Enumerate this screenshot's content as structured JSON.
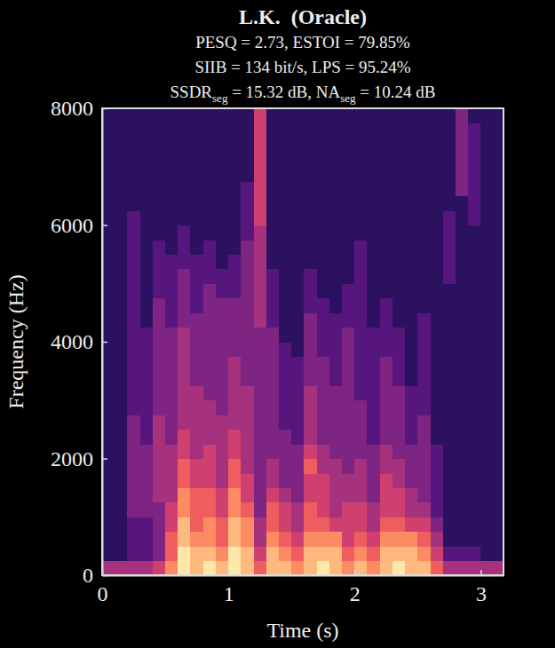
{
  "chart_data": {
    "type": "heatmap",
    "title": "L.K.  (Oracle)",
    "subtitle": [
      [
        "PESQ = 2.73, ESTOI = 79.85%"
      ],
      [
        "SIIB = 134 bit/s, LPS = 95.24%"
      ],
      [
        "SSDR",
        {
          "sub": "seg"
        },
        " = 15.32 dB, NA",
        {
          "sub": "seg"
        },
        " = 10.24 dB"
      ]
    ],
    "x_label": "Time (s)",
    "y_label": "Frequency (Hz)",
    "xlim": [
      0,
      3.18
    ],
    "ylim": [
      0,
      8000
    ],
    "xticks": [
      0,
      1,
      2,
      3
    ],
    "yticks": [
      0,
      2000,
      4000,
      6000,
      8000
    ],
    "x": [
      0,
      0.1,
      0.2,
      0.3,
      0.4,
      0.5,
      0.6,
      0.7,
      0.8,
      0.9,
      1.0,
      1.1,
      1.2,
      1.3,
      1.4,
      1.5,
      1.6,
      1.7,
      1.8,
      1.9,
      2.0,
      2.1,
      2.2,
      2.3,
      2.4,
      2.5,
      2.6,
      2.7,
      2.8,
      2.9,
      3.0,
      3.1
    ],
    "y": [
      0,
      250,
      500,
      750,
      1000,
      1250,
      1500,
      1750,
      2000,
      2250,
      2500,
      2750,
      3000,
      3250,
      3500,
      3750,
      4000,
      4250,
      4500,
      4750,
      5000,
      5250,
      5500,
      5750,
      6000,
      6250,
      6500,
      6750,
      7000,
      7250,
      7500,
      7750
    ],
    "cells": [
      [
        4,
        1,
        1,
        1,
        1,
        1,
        1,
        1,
        1,
        1,
        1,
        1,
        1,
        1,
        1,
        1,
        1,
        1,
        1,
        1,
        1,
        1,
        1,
        1,
        1,
        1,
        1,
        1,
        1,
        1,
        1,
        1
      ],
      [
        4,
        1,
        1,
        1,
        1,
        1,
        1,
        1,
        1,
        1,
        1,
        1,
        1,
        1,
        1,
        1,
        1,
        1,
        1,
        1,
        1,
        1,
        1,
        1,
        1,
        1,
        1,
        1,
        1,
        1,
        1,
        1
      ],
      [
        4,
        2,
        2,
        2,
        3,
        3,
        3,
        3,
        3,
        3,
        3,
        2,
        2,
        2,
        2,
        2,
        2,
        2,
        2,
        2,
        2,
        2,
        2,
        2,
        2,
        1,
        1,
        1,
        1,
        1,
        1,
        1
      ],
      [
        4,
        2,
        2,
        2,
        3,
        3,
        3,
        3,
        3,
        2,
        2,
        2,
        2,
        2,
        2,
        2,
        2,
        1,
        1,
        1,
        1,
        1,
        1,
        1,
        1,
        1,
        1,
        1,
        1,
        1,
        1,
        1
      ],
      [
        5,
        3,
        3,
        3,
        3,
        4,
        4,
        4,
        4,
        4,
        4,
        3,
        3,
        3,
        3,
        3,
        3,
        3,
        3,
        2,
        2,
        2,
        2,
        1,
        1,
        1,
        1,
        1,
        1,
        1,
        1,
        1
      ],
      [
        7,
        6,
        6,
        5,
        5,
        4,
        4,
        4,
        4,
        3,
        3,
        3,
        3,
        3,
        3,
        3,
        3,
        2,
        2,
        2,
        2,
        2,
        1,
        1,
        1,
        1,
        1,
        1,
        1,
        1,
        1,
        1
      ],
      [
        9,
        9,
        8,
        8,
        7,
        7,
        6,
        6,
        5,
        5,
        4,
        4,
        4,
        4,
        4,
        4,
        4,
        3,
        3,
        3,
        3,
        2,
        2,
        2,
        1,
        1,
        1,
        1,
        1,
        1,
        1,
        1
      ],
      [
        8,
        8,
        7,
        6,
        6,
        6,
        5,
        5,
        4,
        4,
        4,
        4,
        4,
        3,
        3,
        3,
        3,
        3,
        2,
        2,
        2,
        2,
        1,
        1,
        1,
        1,
        1,
        1,
        1,
        1,
        1,
        1
      ],
      [
        9,
        8,
        7,
        7,
        6,
        6,
        5,
        5,
        5,
        4,
        4,
        4,
        3,
        3,
        3,
        3,
        3,
        3,
        3,
        3,
        2,
        2,
        2,
        1,
        1,
        1,
        1,
        1,
        1,
        1,
        1,
        1
      ],
      [
        8,
        7,
        6,
        6,
        5,
        5,
        4,
        4,
        4,
        4,
        4,
        3,
        3,
        3,
        3,
        3,
        3,
        3,
        3,
        2,
        2,
        1,
        1,
        1,
        1,
        1,
        1,
        1,
        1,
        1,
        1,
        1
      ],
      [
        9,
        9,
        8,
        8,
        7,
        7,
        6,
        6,
        5,
        5,
        4,
        4,
        4,
        4,
        4,
        3,
        3,
        3,
        3,
        2,
        2,
        2,
        1,
        1,
        1,
        1,
        1,
        1,
        1,
        1,
        1,
        1
      ],
      [
        8,
        8,
        7,
        7,
        6,
        5,
        5,
        4,
        4,
        4,
        4,
        4,
        4,
        3,
        3,
        3,
        3,
        3,
        3,
        3,
        3,
        3,
        3,
        2,
        2,
        2,
        2,
        1,
        1,
        1,
        1,
        1
      ],
      [
        6,
        5,
        4,
        4,
        3,
        3,
        3,
        3,
        3,
        3,
        3,
        3,
        3,
        3,
        3,
        3,
        3,
        4,
        4,
        4,
        4,
        4,
        4,
        4,
        5,
        5,
        5,
        5,
        5,
        5,
        5,
        5
      ],
      [
        8,
        8,
        7,
        6,
        6,
        5,
        4,
        4,
        3,
        3,
        3,
        3,
        3,
        3,
        3,
        3,
        3,
        2,
        2,
        2,
        2,
        1,
        1,
        1,
        1,
        1,
        1,
        1,
        1,
        1,
        1,
        1
      ],
      [
        8,
        7,
        6,
        5,
        5,
        4,
        3,
        3,
        3,
        3,
        2,
        2,
        2,
        2,
        2,
        2,
        1,
        1,
        1,
        1,
        1,
        1,
        1,
        1,
        1,
        1,
        1,
        1,
        1,
        1,
        1,
        1
      ],
      [
        7,
        6,
        5,
        4,
        4,
        3,
        3,
        3,
        3,
        2,
        2,
        2,
        2,
        2,
        2,
        1,
        1,
        1,
        1,
        1,
        1,
        1,
        1,
        1,
        1,
        1,
        1,
        1,
        1,
        1,
        1,
        1
      ],
      [
        8,
        8,
        7,
        6,
        6,
        5,
        5,
        6,
        5,
        4,
        4,
        4,
        4,
        3,
        3,
        3,
        3,
        3,
        2,
        2,
        2,
        1,
        1,
        1,
        1,
        1,
        1,
        1,
        1,
        1,
        1,
        1
      ],
      [
        9,
        8,
        7,
        6,
        5,
        5,
        5,
        4,
        4,
        3,
        3,
        3,
        3,
        3,
        3,
        2,
        2,
        2,
        2,
        1,
        1,
        1,
        1,
        1,
        1,
        1,
        1,
        1,
        1,
        1,
        1,
        1
      ],
      [
        8,
        8,
        7,
        5,
        4,
        4,
        4,
        4,
        3,
        3,
        3,
        3,
        3,
        2,
        2,
        2,
        2,
        2,
        1,
        1,
        1,
        1,
        1,
        1,
        1,
        1,
        1,
        1,
        1,
        1,
        1,
        1
      ],
      [
        7,
        6,
        5,
        5,
        5,
        4,
        4,
        3,
        3,
        3,
        3,
        3,
        3,
        3,
        3,
        3,
        3,
        2,
        2,
        2,
        1,
        1,
        1,
        1,
        1,
        1,
        1,
        1,
        1,
        1,
        1,
        1
      ],
      [
        8,
        7,
        6,
        5,
        5,
        4,
        4,
        4,
        3,
        3,
        3,
        3,
        2,
        2,
        2,
        2,
        2,
        2,
        2,
        2,
        2,
        2,
        2,
        1,
        1,
        1,
        1,
        1,
        1,
        1,
        1,
        1
      ],
      [
        7,
        6,
        5,
        4,
        4,
        3,
        3,
        3,
        3,
        2,
        2,
        2,
        2,
        2,
        2,
        2,
        2,
        1,
        1,
        1,
        1,
        1,
        1,
        1,
        1,
        1,
        1,
        1,
        1,
        1,
        1,
        1
      ],
      [
        8,
        8,
        7,
        6,
        5,
        5,
        5,
        4,
        4,
        3,
        3,
        3,
        3,
        3,
        3,
        2,
        2,
        2,
        2,
        1,
        1,
        1,
        1,
        1,
        1,
        1,
        1,
        1,
        1,
        1,
        1,
        1
      ],
      [
        9,
        8,
        7,
        6,
        5,
        5,
        4,
        4,
        3,
        3,
        3,
        3,
        3,
        2,
        2,
        2,
        2,
        1,
        1,
        1,
        1,
        1,
        1,
        1,
        1,
        1,
        1,
        1,
        1,
        1,
        1,
        1
      ],
      [
        8,
        8,
        7,
        5,
        4,
        4,
        3,
        3,
        3,
        2,
        2,
        2,
        2,
        1,
        1,
        1,
        1,
        1,
        1,
        1,
        1,
        1,
        1,
        1,
        1,
        1,
        1,
        1,
        1,
        1,
        1,
        1
      ],
      [
        8,
        7,
        6,
        5,
        4,
        3,
        3,
        3,
        3,
        3,
        3,
        2,
        2,
        2,
        2,
        2,
        2,
        2,
        1,
        1,
        1,
        1,
        1,
        1,
        1,
        1,
        1,
        1,
        1,
        1,
        1,
        1
      ],
      [
        6,
        5,
        4,
        3,
        2,
        2,
        2,
        2,
        2,
        1,
        1,
        1,
        1,
        1,
        1,
        1,
        1,
        1,
        1,
        1,
        1,
        1,
        1,
        1,
        1,
        1,
        1,
        1,
        1,
        1,
        1,
        1
      ],
      [
        4,
        2,
        1,
        1,
        1,
        1,
        1,
        1,
        1,
        1,
        1,
        1,
        1,
        1,
        1,
        1,
        1,
        1,
        1,
        1,
        2,
        2,
        2,
        2,
        2,
        1,
        1,
        1,
        1,
        1,
        1,
        1
      ],
      [
        4,
        2,
        1,
        1,
        1,
        1,
        1,
        1,
        1,
        1,
        1,
        1,
        1,
        1,
        1,
        1,
        1,
        1,
        1,
        1,
        1,
        1,
        1,
        1,
        1,
        1,
        3,
        3,
        3,
        3,
        3,
        3
      ],
      [
        4,
        2,
        1,
        1,
        1,
        1,
        1,
        1,
        1,
        1,
        1,
        1,
        1,
        1,
        1,
        1,
        1,
        1,
        1,
        1,
        1,
        1,
        1,
        1,
        2,
        2,
        2,
        2,
        2,
        2,
        2,
        1
      ],
      [
        4,
        1,
        1,
        1,
        1,
        1,
        1,
        1,
        1,
        1,
        1,
        1,
        1,
        1,
        1,
        1,
        1,
        1,
        1,
        1,
        1,
        1,
        1,
        1,
        1,
        1,
        1,
        1,
        1,
        1,
        1,
        1
      ],
      [
        4,
        1,
        1,
        1,
        1,
        1,
        1,
        1,
        1,
        1,
        1,
        1,
        1,
        1,
        1,
        1,
        1,
        1,
        1,
        1,
        1,
        1,
        1,
        1,
        1,
        1,
        1,
        1,
        1,
        1,
        1,
        1
      ]
    ]
  }
}
